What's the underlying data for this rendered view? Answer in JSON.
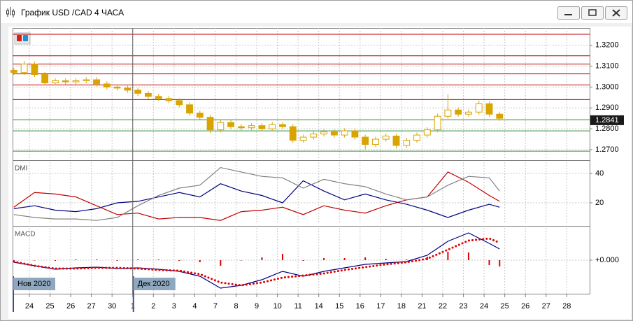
{
  "window": {
    "title": "График USD /CAD  4 ЧАСА"
  },
  "x_axis": {
    "labels": [
      "24",
      "25",
      "26",
      "27",
      "30",
      "1",
      "2",
      "3",
      "4",
      "7",
      "8",
      "9",
      "10",
      "11",
      "14",
      "15",
      "16",
      "17",
      "18",
      "21",
      "22",
      "23",
      "24",
      "25",
      "26",
      "27",
      "28"
    ],
    "periods": [
      "Нов 2020",
      "Дек 2020"
    ]
  },
  "chart_data": [
    {
      "type": "candlestick",
      "color": "#d9a400",
      "x": [
        -0.75,
        -0.25,
        0.25,
        0.75,
        1.25,
        1.75,
        2.25,
        2.75,
        3.25,
        3.75,
        4.25,
        4.75,
        5.25,
        5.75,
        6.25,
        6.75,
        7.25,
        7.75,
        8.25,
        8.75,
        9.25,
        9.75,
        10.25,
        10.75,
        11.25,
        11.75,
        12.25,
        12.75,
        13.25,
        13.75,
        14.25,
        14.75,
        15.25,
        15.75,
        16.25,
        16.75,
        17.25,
        17.75,
        18.25,
        18.75,
        19.25,
        19.75,
        20.25,
        20.75,
        21.25,
        21.75,
        22.25,
        22.75
      ],
      "open": [
        1.308,
        1.307,
        1.311,
        1.306,
        1.302,
        1.303,
        1.3025,
        1.303,
        1.3035,
        1.3015,
        1.3,
        1.2995,
        1.2985,
        1.297,
        1.2955,
        1.2945,
        1.2935,
        1.2915,
        1.2875,
        1.2855,
        1.2795,
        1.283,
        1.281,
        1.2805,
        1.2815,
        1.28,
        1.282,
        1.281,
        1.2745,
        1.276,
        1.2775,
        1.2785,
        1.277,
        1.279,
        1.276,
        1.2725,
        1.275,
        1.2765,
        1.272,
        1.2745,
        1.277,
        1.2795,
        1.286,
        1.289,
        1.287,
        1.288,
        1.292,
        1.287
      ],
      "high": [
        1.3092,
        1.3125,
        1.3122,
        1.3072,
        1.3042,
        1.3042,
        1.3042,
        1.3047,
        1.3047,
        1.3027,
        1.3012,
        1.3007,
        1.2997,
        1.2982,
        1.2967,
        1.2957,
        1.2947,
        1.2927,
        1.2887,
        1.2867,
        1.2842,
        1.2842,
        1.2822,
        1.2827,
        1.2827,
        1.2832,
        1.2832,
        1.2822,
        1.2772,
        1.2787,
        1.2797,
        1.2797,
        1.2802,
        1.2802,
        1.2772,
        1.2762,
        1.2777,
        1.2777,
        1.2757,
        1.2782,
        1.2807,
        1.2872,
        1.2965,
        1.2902,
        1.2892,
        1.2935,
        1.2932,
        1.2882
      ],
      "low": [
        1.3058,
        1.3058,
        1.3048,
        1.3008,
        1.3008,
        1.3013,
        1.3013,
        1.3018,
        1.3003,
        1.2988,
        1.2983,
        1.2973,
        1.2958,
        1.2943,
        1.2933,
        1.2923,
        1.2903,
        1.2863,
        1.2843,
        1.278,
        1.2783,
        1.2798,
        1.2793,
        1.2793,
        1.2788,
        1.2788,
        1.2798,
        1.2733,
        1.2733,
        1.2748,
        1.2763,
        1.2758,
        1.2758,
        1.2748,
        1.27,
        1.2713,
        1.2738,
        1.2705,
        1.2708,
        1.2733,
        1.2758,
        1.2783,
        1.2848,
        1.2858,
        1.2858,
        1.2868,
        1.2858,
        1.2838
      ],
      "close": [
        1.307,
        1.311,
        1.306,
        1.302,
        1.303,
        1.3025,
        1.303,
        1.3035,
        1.3015,
        1.3,
        1.2995,
        1.2985,
        1.297,
        1.2955,
        1.2945,
        1.2935,
        1.2915,
        1.2875,
        1.2855,
        1.2795,
        1.283,
        1.281,
        1.2805,
        1.2815,
        1.28,
        1.282,
        1.281,
        1.2745,
        1.276,
        1.2775,
        1.2785,
        1.277,
        1.279,
        1.276,
        1.2725,
        1.275,
        1.2765,
        1.272,
        1.2745,
        1.277,
        1.2795,
        1.286,
        1.289,
        1.287,
        1.288,
        1.292,
        1.287,
        1.285
      ],
      "ylim": [
        1.2653,
        1.3283
      ],
      "yticks": [
        {
          "value": 1.27,
          "label": "1.2700"
        },
        {
          "value": 1.28,
          "label": "1.2800"
        },
        {
          "value": 1.29,
          "label": "1.2900"
        },
        {
          "value": 1.3,
          "label": "1.3000"
        },
        {
          "value": 1.31,
          "label": "1.3100"
        },
        {
          "value": 1.32,
          "label": "1.3200"
        }
      ],
      "levels": [
        {
          "value": 1.3253,
          "color": "#c00000"
        },
        {
          "value": 1.315,
          "color": "#c00000"
        },
        {
          "value": 1.311,
          "color": "#c00000"
        },
        {
          "value": 1.3063,
          "color": "#c00000"
        },
        {
          "value": 1.301,
          "color": "#c00000"
        },
        {
          "value": 1.294,
          "color": "#c00000"
        },
        {
          "value": 1.2843,
          "color": "#2e8b2e"
        },
        {
          "value": 1.279,
          "color": "#2e8b2e"
        },
        {
          "value": 1.2693,
          "color": "#2e8b2e"
        }
      ],
      "last_price": 1.2841,
      "grid": true
    },
    {
      "type": "line",
      "title": "DMI",
      "x": [
        -0.75,
        0.25,
        1.25,
        2.25,
        3.25,
        4.25,
        5.25,
        6.25,
        7.25,
        8.25,
        9.25,
        10.25,
        11.25,
        12.25,
        13.25,
        14.25,
        15.25,
        16.25,
        17.25,
        18.25,
        19.25,
        20.25,
        21.25,
        22.25,
        22.75
      ],
      "series": [
        {
          "color": "#000080",
          "values": [
            16,
            18,
            15,
            14,
            16,
            20,
            21,
            24,
            27,
            24,
            33,
            28,
            25,
            20,
            35,
            28,
            22,
            26,
            22,
            19,
            15,
            10,
            15,
            19,
            17
          ]
        },
        {
          "color": "#c00000",
          "values": [
            17,
            27,
            26,
            24,
            18,
            12,
            13,
            9,
            10,
            10,
            8,
            14,
            15,
            17,
            12,
            18,
            15,
            13,
            18,
            22,
            24,
            41,
            34,
            25,
            21
          ]
        },
        {
          "color": "#808080",
          "values": [
            12,
            10,
            9,
            9,
            8,
            10,
            18,
            25,
            30,
            32,
            44,
            41,
            38,
            37,
            30,
            36,
            33,
            31,
            26,
            22,
            24,
            32,
            38,
            37,
            28
          ]
        }
      ],
      "ylim": [
        5.7,
        47.6
      ],
      "yticks": [
        20,
        40
      ],
      "grid": true
    },
    {
      "type": "macd",
      "title": "MACD",
      "x": [
        -0.75,
        0.25,
        1.25,
        2.25,
        3.25,
        4.25,
        5.25,
        6.25,
        7.25,
        8.25,
        9.25,
        10.25,
        11.25,
        12.25,
        13.25,
        14.25,
        15.25,
        16.25,
        17.25,
        18.25,
        19.25,
        20.25,
        21.25,
        22.25,
        22.75
      ],
      "series": [
        {
          "color": "#000080",
          "values": [
            -0.0003,
            -0.0008,
            -0.0013,
            -0.0011,
            -0.001,
            -0.0012,
            -0.0011,
            -0.0013,
            -0.0016,
            -0.0023,
            -0.004,
            -0.0036,
            -0.0028,
            -0.0016,
            -0.0023,
            -0.0016,
            -0.0011,
            -0.0006,
            -0.0004,
            -0.0002,
            0.0007,
            0.0027,
            0.0039,
            0.0024,
            0.0016
          ]
        },
        {
          "color": "#e00000",
          "style": "dots",
          "values": [
            -0.0002,
            -0.0008,
            -0.0012,
            -0.0012,
            -0.0011,
            -0.0011,
            -0.0012,
            -0.0014,
            -0.0015,
            -0.002,
            -0.0032,
            -0.0036,
            -0.0032,
            -0.0025,
            -0.0022,
            -0.0019,
            -0.0014,
            -0.001,
            -0.0006,
            -0.0003,
            0.0002,
            0.0015,
            0.0028,
            0.0031,
            0.0025
          ]
        }
      ],
      "histogram": {
        "color": "#e00000",
        "values": [
          -0.0001,
          0,
          -0.0001,
          0.0001,
          0.0001,
          -0.0001,
          0.0001,
          0.0001,
          -0.0001,
          -0.0003,
          -0.0008,
          0,
          0.0004,
          0.0009,
          -0.0001,
          0.0003,
          0.0003,
          0.0004,
          0.0002,
          0.0001,
          0.0005,
          0.0012,
          0.0011,
          -0.0007,
          -0.0009
        ]
      },
      "ylim": [
        -0.0048,
        0.0046
      ],
      "yticks": [
        {
          "value": 0,
          "label": "+0.000"
        }
      ],
      "grid": true
    }
  ]
}
